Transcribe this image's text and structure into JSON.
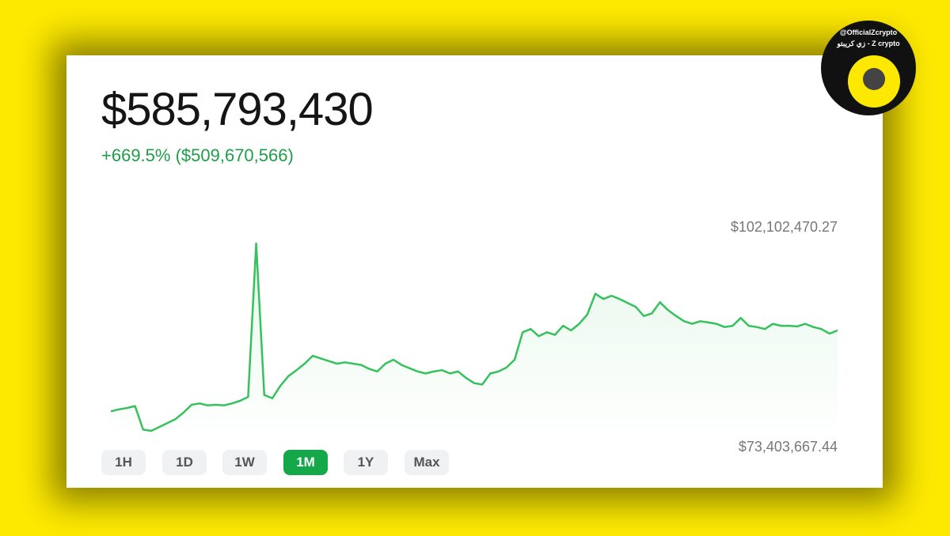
{
  "chart_data": {
    "type": "line",
    "title": "$585,793,430",
    "subtitle": "+669.5% ($509,670,566)",
    "high_label": "$102,102,470.27",
    "low_label": "$73,403,667.44",
    "color": "#35c25c",
    "ylim": [
      73403667.44,
      102102470.27
    ],
    "values": [
      76400000,
      76700000,
      76900000,
      77200000,
      73600000,
      73403667.44,
      74000000,
      74600000,
      75200000,
      76200000,
      77400000,
      77600000,
      77300000,
      77400000,
      77300000,
      77600000,
      78000000,
      78600000,
      102102470.27,
      78900000,
      78400000,
      80300000,
      81800000,
      82700000,
      83700000,
      84900000,
      84500000,
      84100000,
      83700000,
      83900000,
      83700000,
      83500000,
      82900000,
      82500000,
      83700000,
      84300000,
      83500000,
      83000000,
      82500000,
      82200000,
      82500000,
      82700000,
      82200000,
      82500000,
      81500000,
      80700000,
      80500000,
      82200000,
      82500000,
      83100000,
      84300000,
      88500000,
      89000000,
      87900000,
      88500000,
      88100000,
      89500000,
      88800000,
      89800000,
      91200000,
      94400000,
      93600000,
      94100000,
      93600000,
      93000000,
      92400000,
      91000000,
      91400000,
      93100000,
      91900000,
      91000000,
      90200000,
      89800000,
      90200000,
      90000000,
      89800000,
      89300000,
      89500000,
      90700000,
      89500000,
      89300000,
      89000000,
      89800000,
      89500000,
      89500000,
      89400000,
      89800000,
      89300000,
      89000000,
      88300000,
      88800000
    ],
    "ranges": [
      "1H",
      "1D",
      "1W",
      "1M",
      "1Y",
      "Max"
    ],
    "selected_range": 3
  },
  "watermark": {
    "handle": "@OfficialZcrypto",
    "name": "زي كريبتو - Z crypto"
  }
}
